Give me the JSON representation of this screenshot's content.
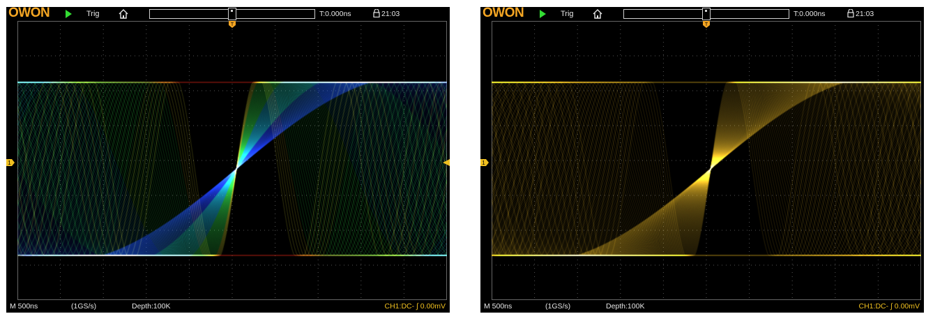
{
  "screens": [
    {
      "id": "left",
      "logo": "OWON",
      "status": "Trig",
      "trigger_time": "T:0.000ns",
      "clock": "21:03",
      "timebase": "M 500ns",
      "sample_rate": "(1GS/s)",
      "depth": "Depth:100K",
      "channel_info": "CH1:DC- ∫ 0.00mV",
      "display_mode": "color-grade",
      "colors": [
        "#1a3cff",
        "#19d0ff",
        "#33ff55",
        "#ffff33",
        "#ff2a1a"
      ]
    },
    {
      "id": "right",
      "logo": "OWON",
      "status": "Trig",
      "trigger_time": "T:0.000ns",
      "clock": "21:03",
      "timebase": "M 500ns",
      "sample_rate": "(1GS/s)",
      "depth": "Depth:100K",
      "channel_info": "CH1:DC- ∫ 0.00mV",
      "display_mode": "single-color",
      "colors": [
        "#f0c020"
      ]
    }
  ],
  "icons": {
    "run": "play-icon",
    "home": "home-icon",
    "lock": "lock-icon",
    "trigger": "trigger-marker-icon",
    "channel": "channel1-marker-icon"
  },
  "colors": {
    "logo": "#f5a623",
    "run": "#33dd33",
    "trigger_marker": "#f5a623",
    "channel_marker": "#f0c020"
  }
}
